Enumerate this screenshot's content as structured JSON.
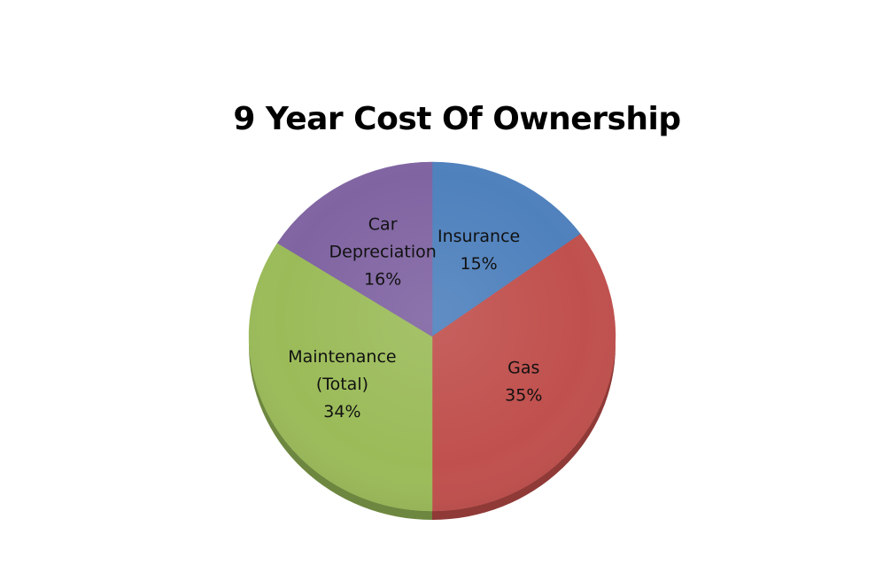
{
  "chart_data": {
    "type": "pie",
    "title": "9 Year Cost Of Ownership",
    "slices": [
      {
        "name": "Insurance",
        "label_lines": [
          "Insurance"
        ],
        "value": 15,
        "value_label": "15%",
        "color": "#4f81bd",
        "side_color": "#3f6894"
      },
      {
        "name": "Gas",
        "label_lines": [
          "Gas"
        ],
        "value": 35,
        "value_label": "35%",
        "color": "#c0504d",
        "side_color": "#8f3a37"
      },
      {
        "name": "Maintenance (Total)",
        "label_lines": [
          "Maintenance",
          "(Total)"
        ],
        "value": 34,
        "value_label": "34%",
        "color": "#9bbb59",
        "side_color": "#6e8740"
      },
      {
        "name": "Car Depreciation",
        "label_lines": [
          "Car",
          "Depreciation"
        ],
        "value": 16,
        "value_label": "16%",
        "color": "#8064a2",
        "side_color": "#5c4876"
      }
    ],
    "start_angle": "top",
    "direction": "clockwise",
    "data_labels": "inside",
    "legend": "none"
  }
}
